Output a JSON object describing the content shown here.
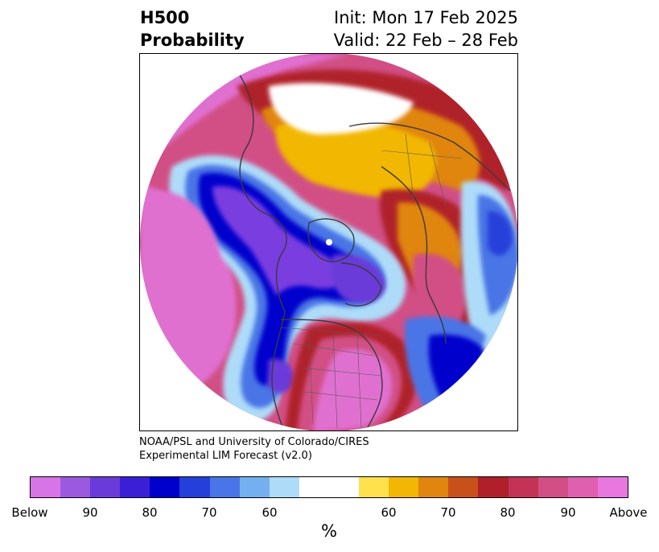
{
  "title": {
    "left_line1": "H500",
    "left_line2": "Probability",
    "right_line1": "Init: Mon 17 Feb 2025",
    "right_line2": "Valid: 22 Feb – 28 Feb"
  },
  "credits": {
    "line1": "NOAA/PSL and University of Colorado/CIRES",
    "line2": "Experimental LIM Forecast (v2.0)"
  },
  "colorbar": {
    "unit": "%",
    "colors": [
      "#d875e6",
      "#9b59e0",
      "#6a3bd9",
      "#3a1fd6",
      "#0000cc",
      "#2540da",
      "#4a75e6",
      "#74b0f0",
      "#aedcf8",
      "#ffffff",
      "#ffffff",
      "#ffe14d",
      "#f2b705",
      "#e0850f",
      "#c8501a",
      "#b0202a",
      "#c43355",
      "#d14f85",
      "#e060b0",
      "#e878e0"
    ],
    "ticks": [
      "Below",
      "90",
      "80",
      "70",
      "60",
      "60",
      "70",
      "80",
      "90",
      "Above"
    ]
  },
  "map": {
    "projection": "north-polar-stereographic",
    "colors": {
      "above_far": "#e070d0",
      "above_mid": "#d14f85",
      "above_near": "#b0202a",
      "warm_orange": "#e0850f",
      "warm_yellow": "#f2b705",
      "neutral": "#ffffff",
      "below_light": "#aedcf8",
      "below_mid": "#4a75e6",
      "below_deep": "#0000cc",
      "below_far": "#7a3ee0",
      "coast": "#3a3a3a"
    }
  }
}
